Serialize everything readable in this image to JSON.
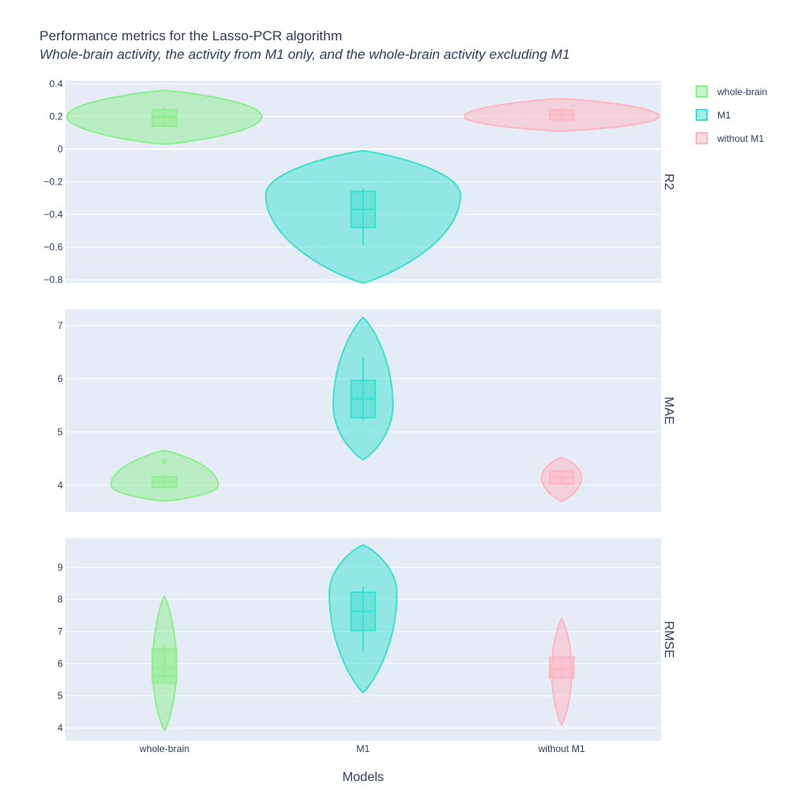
{
  "chart_data": {
    "type": "violin",
    "title": "Performance metrics for the Lasso-PCR algorithm",
    "subtitle": "Whole-brain activity, the activity from M1 only, and the whole-brain activity excluding M1",
    "xlabel": "Models",
    "categories": [
      "whole-brain",
      "M1",
      "without M1"
    ],
    "legend": {
      "placement": "top-right",
      "entries": [
        "whole-brain",
        "M1",
        "without M1"
      ]
    },
    "colors": {
      "whole-brain": "#90ee90",
      "M1": "#40e0d0",
      "without M1": "#ffb6c1"
    },
    "grid": true,
    "panels": [
      {
        "metric": "R2",
        "ylim": [
          -0.82,
          0.42
        ],
        "yticks": [
          0.4,
          0.2,
          0,
          -0.2,
          -0.4,
          -0.6,
          -0.8
        ],
        "ytick_labels": [
          "0.4",
          "0.2",
          "0",
          "−0.2",
          "−0.4",
          "−0.6",
          "−0.8"
        ],
        "series": [
          {
            "name": "whole-brain",
            "min": 0.03,
            "max": 0.36,
            "peak": 0.2,
            "halfwidth": 0.49,
            "q1": 0.14,
            "median": 0.2,
            "mean": 0.19,
            "q3": 0.24,
            "wlow": 0.14,
            "whigh": 0.26,
            "outliers": []
          },
          {
            "name": "M1",
            "min": -0.82,
            "max": -0.01,
            "peak": -0.28,
            "halfwidth": 0.49,
            "q1": -0.48,
            "median": -0.37,
            "mean": -0.37,
            "q3": -0.26,
            "wlow": -0.59,
            "whigh": -0.24,
            "outliers": []
          },
          {
            "name": "without M1",
            "min": 0.11,
            "max": 0.31,
            "peak": 0.2,
            "halfwidth": 0.49,
            "q1": 0.18,
            "median": 0.21,
            "mean": 0.21,
            "q3": 0.24,
            "wlow": 0.18,
            "whigh": 0.26,
            "outliers": []
          }
        ]
      },
      {
        "metric": "MAE",
        "ylim": [
          3.5,
          7.3
        ],
        "yticks": [
          7,
          6,
          5,
          4
        ],
        "ytick_labels": [
          "7",
          "6",
          "5",
          "4"
        ],
        "series": [
          {
            "name": "whole-brain",
            "min": 3.7,
            "max": 4.65,
            "peak": 4.0,
            "halfwidth": 0.27,
            "q1": 3.96,
            "median": 4.06,
            "mean": 4.05,
            "q3": 4.16,
            "wlow": 3.96,
            "whigh": 4.2,
            "outliers": [
              4.45
            ]
          },
          {
            "name": "M1",
            "min": 4.48,
            "max": 7.15,
            "peak": 5.5,
            "halfwidth": 0.15,
            "q1": 5.27,
            "median": 5.62,
            "mean": 5.65,
            "q3": 5.97,
            "wlow": 5.22,
            "whigh": 6.4,
            "outliers": []
          },
          {
            "name": "without M1",
            "min": 3.7,
            "max": 4.52,
            "peak": 4.15,
            "halfwidth": 0.1,
            "q1": 4.02,
            "median": 4.15,
            "mean": 4.15,
            "q3": 4.27,
            "wlow": 4.02,
            "whigh": 4.3,
            "outliers": []
          }
        ]
      },
      {
        "metric": "RMSE",
        "ylim": [
          3.6,
          9.9
        ],
        "yticks": [
          9,
          8,
          7,
          6,
          5,
          4
        ],
        "ytick_labels": [
          "9",
          "8",
          "7",
          "6",
          "5",
          "4"
        ],
        "series": [
          {
            "name": "whole-brain",
            "min": 3.92,
            "max": 8.1,
            "peak": 5.9,
            "halfwidth": 0.06,
            "q1": 5.4,
            "median": 5.62,
            "mean": 5.85,
            "q3": 6.45,
            "wlow": 5.4,
            "whigh": 6.6,
            "outliers": []
          },
          {
            "name": "M1",
            "min": 5.1,
            "max": 9.7,
            "peak": 8.2,
            "halfwidth": 0.17,
            "q1": 7.03,
            "median": 7.63,
            "mean": 7.63,
            "q3": 8.22,
            "wlow": 6.4,
            "whigh": 8.4,
            "outliers": []
          },
          {
            "name": "without M1",
            "min": 4.1,
            "max": 7.4,
            "peak": 5.8,
            "halfwidth": 0.05,
            "q1": 5.55,
            "median": 5.82,
            "mean": 5.85,
            "q3": 6.2,
            "wlow": 5.55,
            "whigh": 6.2,
            "outliers": []
          }
        ]
      }
    ]
  }
}
